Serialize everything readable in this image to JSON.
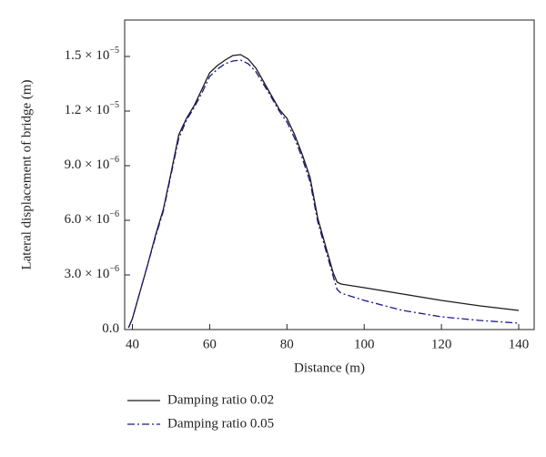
{
  "chart_data": {
    "type": "line",
    "xlabel": "Distance (m)",
    "ylabel": "Lateral displacement of bridge (m)",
    "x": [
      39,
      40,
      42,
      44,
      46,
      48,
      50,
      52,
      54,
      56,
      58,
      60,
      62,
      64,
      66,
      68,
      70,
      72,
      74,
      76,
      78,
      80,
      82,
      84,
      86,
      88,
      90,
      92,
      93,
      94,
      100,
      110,
      120,
      130,
      140
    ],
    "series": [
      {
        "name": "Damping ratio 0.02",
        "color": "#1a1a1a",
        "dash": "solid",
        "values": [
          1e-07,
          6e-07,
          2.1e-06,
          3.6e-06,
          5.2e-06,
          6.6e-06,
          8.6e-06,
          1.07e-05,
          1.16e-05,
          1.23e-05,
          1.32e-05,
          1.41e-05,
          1.45e-05,
          1.48e-05,
          1.505e-05,
          1.51e-05,
          1.485e-05,
          1.435e-05,
          1.36e-05,
          1.285e-05,
          1.21e-05,
          1.16e-05,
          1.07e-05,
          9.6e-06,
          8.35e-06,
          6.1e-06,
          4.6e-06,
          3.1e-06,
          2.6e-06,
          2.5e-06,
          2.3e-06,
          1.95e-06,
          1.6e-06,
          1.3e-06,
          1.05e-06
        ]
      },
      {
        "name": "Damping ratio 0.05",
        "color": "#1a1a8c",
        "dash": "dashdot",
        "values": [
          1e-07,
          6e-07,
          2.1e-06,
          3.6e-06,
          5.1e-06,
          6.5e-06,
          8.5e-06,
          1.05e-05,
          1.15e-05,
          1.22e-05,
          1.3e-05,
          1.39e-05,
          1.43e-05,
          1.46e-05,
          1.475e-05,
          1.48e-05,
          1.46e-05,
          1.415e-05,
          1.345e-05,
          1.275e-05,
          1.2e-05,
          1.14e-05,
          1.05e-05,
          9.4e-06,
          8.1e-06,
          5.9e-06,
          4.4e-06,
          2.9e-06,
          2.2e-06,
          2e-06,
          1.6e-06,
          1.05e-06,
          7e-07,
          5e-07,
          3.5e-07
        ]
      }
    ],
    "xlim": [
      38,
      144
    ],
    "ylim": [
      0,
      1.7e-05
    ],
    "xticks": [
      40,
      60,
      80,
      100,
      120,
      140
    ],
    "yticks": [
      {
        "value": 0,
        "label": "0.0"
      },
      {
        "value": 3e-06,
        "label": "3.0 × 10",
        "exponent": "−6"
      },
      {
        "value": 6e-06,
        "label": "6.0 × 10",
        "exponent": "−6"
      },
      {
        "value": 9e-06,
        "label": "9.0 × 10",
        "exponent": "−6"
      },
      {
        "value": 1.2e-05,
        "label": "1.2 × 10",
        "exponent": "−5"
      },
      {
        "value": 1.5e-05,
        "label": "1.5 × 10",
        "exponent": "−5"
      }
    ],
    "legend": "bottom"
  }
}
